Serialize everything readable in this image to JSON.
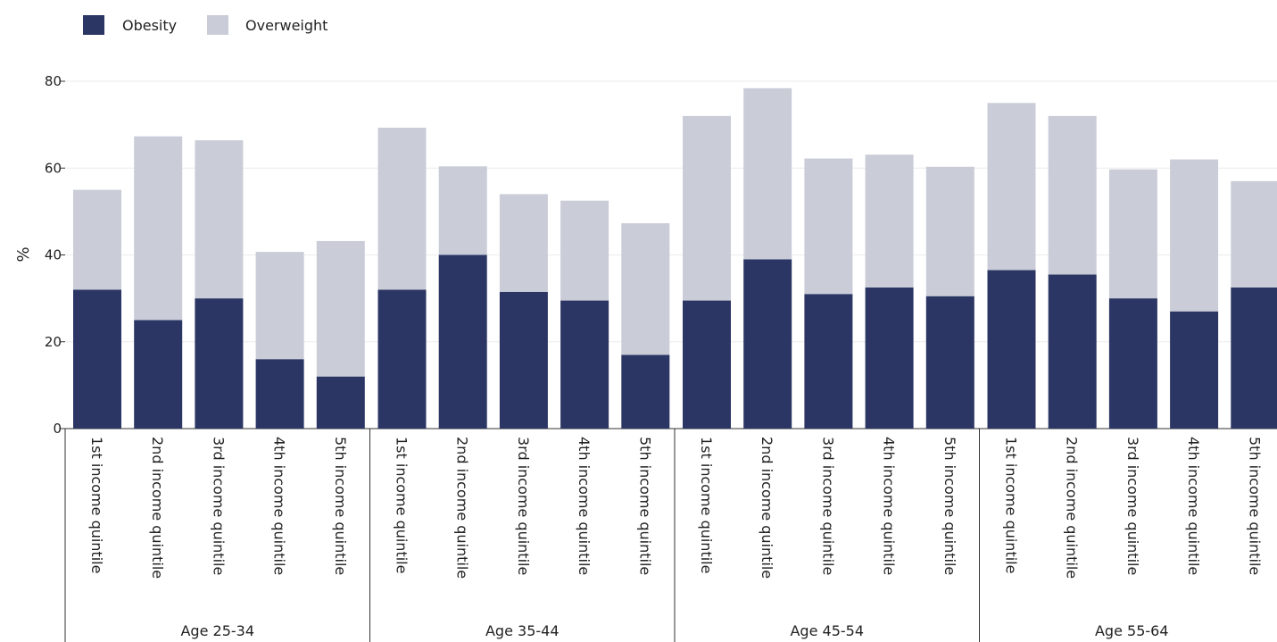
{
  "chart_data": {
    "type": "bar",
    "stacked": true,
    "title": "",
    "xlabel": "",
    "ylabel": "%",
    "ylim": [
      0,
      80
    ],
    "yticks": [
      0,
      20,
      40,
      60,
      80
    ],
    "grid": true,
    "legend": {
      "position": "top-left"
    },
    "groups": [
      "Age 25-34",
      "Age 35-44",
      "Age 45-54",
      "Age 55-64"
    ],
    "categories": [
      "1st income quintile",
      "2nd income quintile",
      "3rd income quintile",
      "4th income quintile",
      "5th income quintile"
    ],
    "series": [
      {
        "name": "Obesity",
        "color": "#2b3664",
        "values": [
          [
            32,
            25,
            30,
            16,
            12
          ],
          [
            32,
            40,
            31.5,
            29.5,
            17
          ],
          [
            29.5,
            39,
            31,
            32.5,
            30.5
          ],
          [
            36.5,
            35.5,
            30,
            27,
            32.5
          ]
        ]
      },
      {
        "name": "Overweight",
        "color": "#cacdd8",
        "values": [
          [
            23,
            42.3,
            36.4,
            24.7,
            31.2
          ],
          [
            37.3,
            20.4,
            22.5,
            23,
            30.3
          ],
          [
            42.5,
            39.4,
            31.2,
            30.6,
            29.8
          ],
          [
            38.5,
            36.5,
            29.7,
            35,
            24.5
          ]
        ]
      }
    ]
  }
}
